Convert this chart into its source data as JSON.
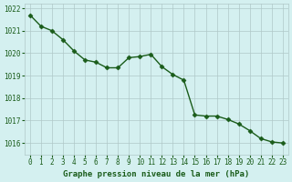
{
  "hours": [
    0,
    1,
    2,
    3,
    4,
    5,
    6,
    7,
    8,
    9,
    10,
    11,
    12,
    13,
    14,
    15,
    16,
    17,
    18,
    19,
    20,
    21,
    22,
    23
  ],
  "pressure": [
    1021.7,
    1021.2,
    1021.0,
    1020.6,
    1020.1,
    1019.7,
    1019.6,
    1019.35,
    1019.35,
    1019.8,
    1019.85,
    1019.95,
    1019.4,
    1019.05,
    1018.8,
    1017.25,
    1017.2,
    1017.2,
    1017.05,
    1016.85,
    1016.55,
    1016.2,
    1016.05,
    1016.0
  ],
  "line_color": "#1a5c1a",
  "marker_color": "#1a5c1a",
  "bg_color": "#d4f0f0",
  "grid_color": "#b0c8c8",
  "tick_label_color": "#1a5c1a",
  "xlabel": "Graphe pression niveau de la mer (hPa)",
  "xlabel_color": "#1a5c1a",
  "ylim_min": 1015.5,
  "ylim_max": 1022.2,
  "yticks": [
    1016,
    1017,
    1018,
    1019,
    1020,
    1021,
    1022
  ],
  "xticks": [
    0,
    1,
    2,
    3,
    4,
    5,
    6,
    7,
    8,
    9,
    10,
    11,
    12,
    13,
    14,
    15,
    16,
    17,
    18,
    19,
    20,
    21,
    22,
    23
  ]
}
